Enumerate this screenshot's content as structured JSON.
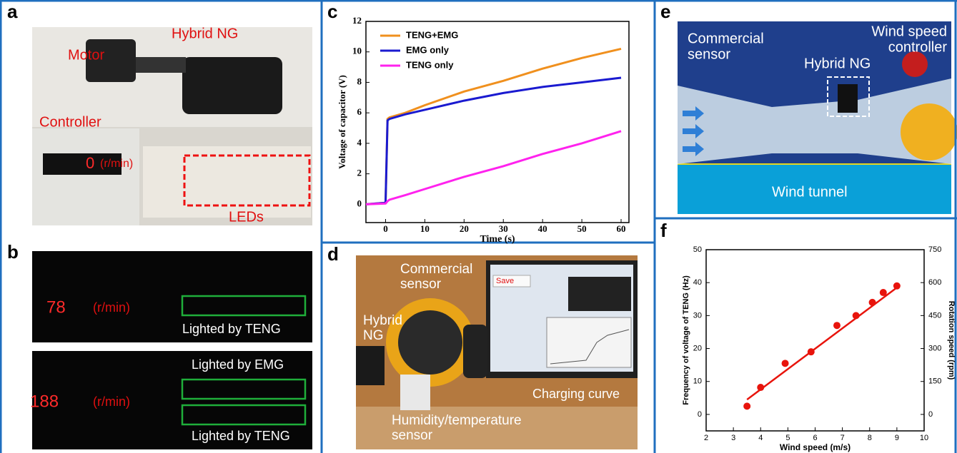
{
  "panels": [
    {
      "label": "a",
      "notes": [
        [
          "Motor"
        ],
        [
          "Hybrid NG"
        ],
        [
          "Controller"
        ],
        [
          "LEDs"
        ],
        [
          "(r/min)"
        ],
        [
          "0"
        ]
      ]
    },
    {
      "label": "b",
      "notes": [
        [
          "78"
        ],
        [
          "(r/min)"
        ],
        [
          "Lighted by TENG"
        ],
        [
          "188"
        ],
        [
          "(r/min)"
        ],
        [
          "Lighted by EMG"
        ],
        [
          "Lighted by TENG"
        ]
      ]
    },
    {
      "label": "c"
    },
    {
      "label": "d",
      "notes": [
        [
          "Hybrid",
          "NG"
        ],
        [
          "Commercial",
          "sensor"
        ],
        [
          "Save"
        ],
        [
          "Charging curve"
        ],
        [
          "Humidity/temperature",
          "sensor"
        ]
      ]
    },
    {
      "label": "e",
      "notes": [
        [
          "Commercial",
          "sensor"
        ],
        [
          "Hybrid NG"
        ],
        [
          "Wind speed",
          "controller"
        ],
        [
          "Wind tunnel"
        ]
      ]
    },
    {
      "label": "f"
    }
  ],
  "chart_data": [
    {
      "type": "line",
      "xlabel": "Time (s)",
      "ylabel": "Voltage of capacitor (V)",
      "x": [
        -5,
        0,
        0.5,
        1,
        5,
        10,
        20,
        30,
        40,
        50,
        60
      ],
      "series": [
        {
          "name": "TENG+EMG",
          "color": "#f0901e",
          "values": [
            0,
            0.1,
            5.6,
            5.7,
            6.0,
            6.5,
            7.4,
            8.1,
            8.9,
            9.6,
            10.2
          ]
        },
        {
          "name": "EMG only",
          "color": "#1a1ad0",
          "values": [
            0,
            0.1,
            5.5,
            5.6,
            5.9,
            6.2,
            6.8,
            7.3,
            7.7,
            8.0,
            8.3
          ]
        },
        {
          "name": "TENG only",
          "color": "#ff22ee",
          "values": [
            0,
            0.05,
            0.2,
            0.3,
            0.6,
            1.0,
            1.8,
            2.5,
            3.3,
            4.0,
            4.8
          ]
        }
      ],
      "xlim": [
        -5,
        62
      ],
      "xticks": [
        0,
        10,
        20,
        30,
        40,
        50,
        60
      ],
      "ylim": [
        -1.2,
        12
      ],
      "yticks": [
        0,
        2,
        4,
        6,
        8,
        10,
        12
      ],
      "legend": "upper left"
    },
    {
      "type": "scatter",
      "xlabel": "Wind speed (m/s)",
      "ylabel": "Frequency of voltage of TENG (Hz)",
      "y2label": "Rotation speed (rpm)",
      "color": "#e8140c",
      "x": [
        3.5,
        4,
        4.9,
        5.85,
        6.8,
        7.5,
        8.1,
        8.5,
        9
      ],
      "values": [
        2.5,
        8.2,
        15.5,
        19,
        27,
        30,
        34,
        37,
        39
      ],
      "fit": {
        "x": [
          3.5,
          9
        ],
        "values": [
          4.5,
          38.5
        ]
      },
      "xlim": [
        2,
        10
      ],
      "xticks": [
        2,
        3,
        4,
        5,
        6,
        7,
        8,
        9,
        10
      ],
      "ylim": [
        -5,
        50
      ],
      "yticks": [
        0,
        10,
        20,
        30,
        40,
        50
      ],
      "y2lim": [
        -75,
        750
      ],
      "y2ticks": [
        0,
        150,
        300,
        450,
        600,
        750
      ]
    }
  ]
}
